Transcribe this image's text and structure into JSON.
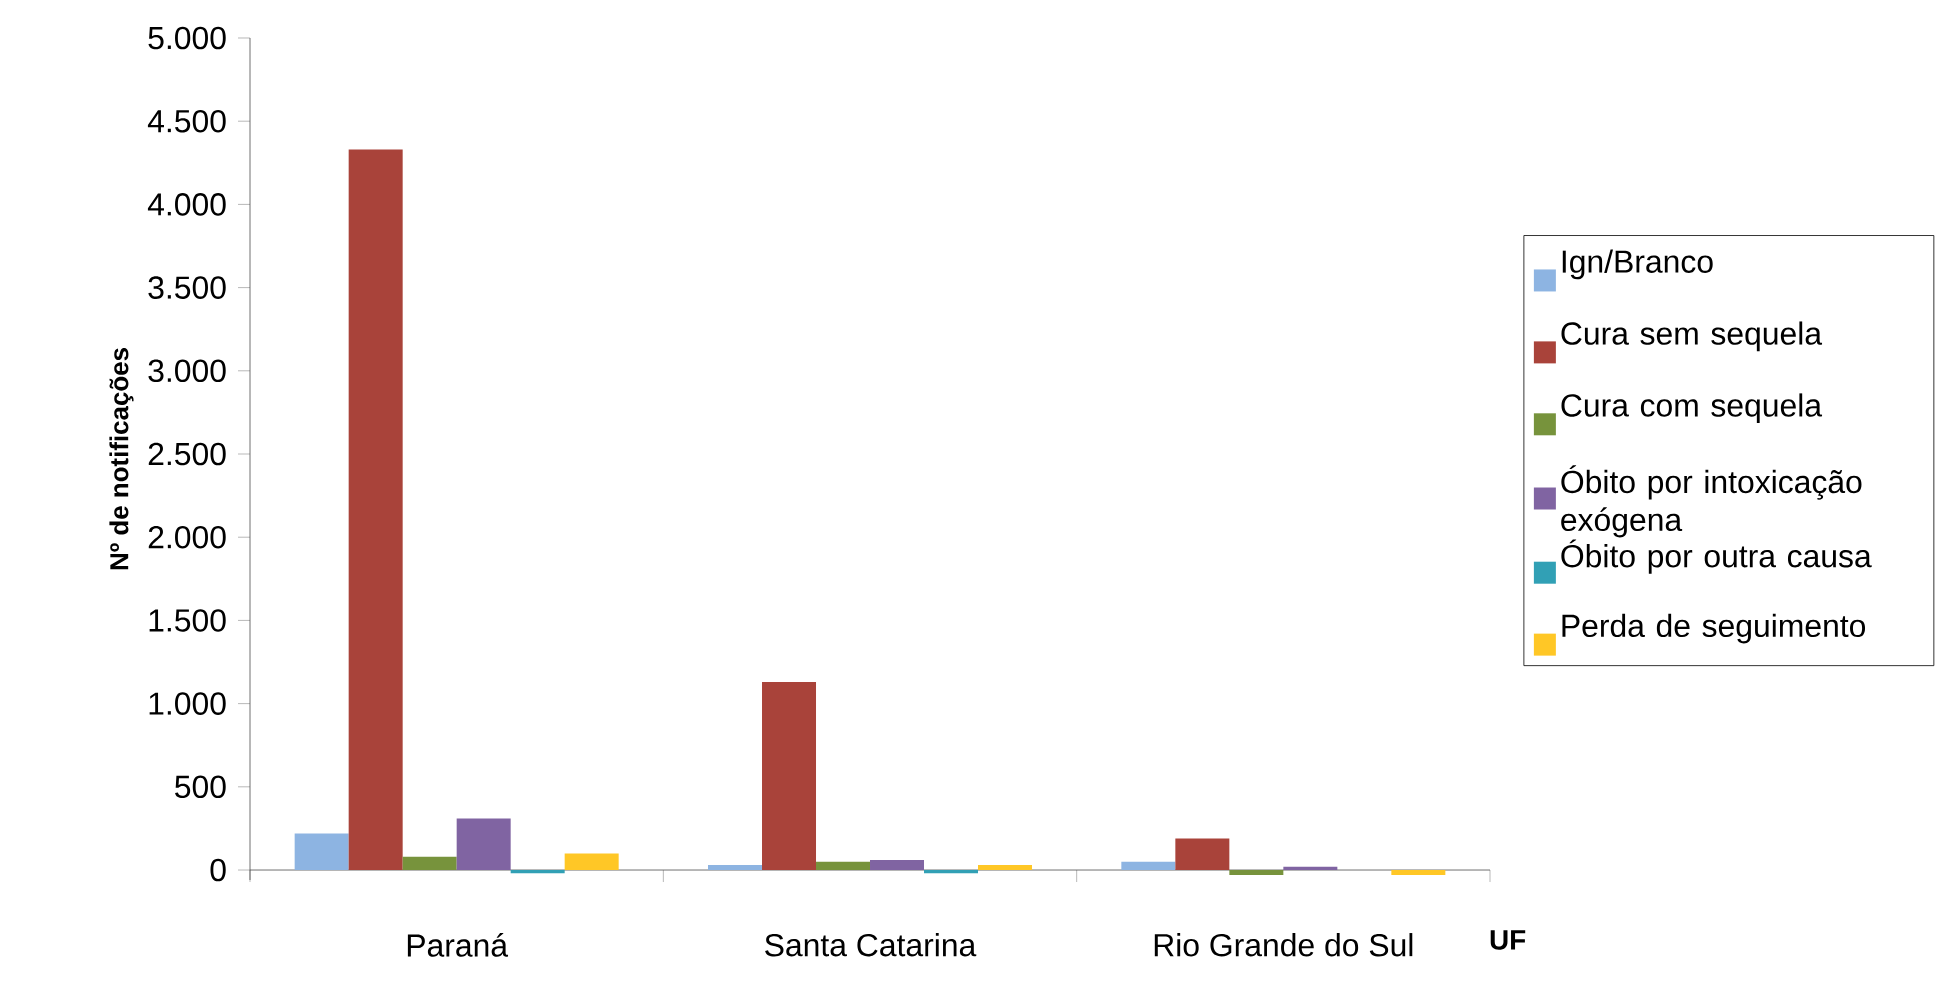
{
  "chart_data": {
    "type": "bar",
    "ylabel": "Nº de notificações",
    "xlabel": "UF",
    "categories": [
      "Paraná",
      "Santa Catarina",
      "Rio Grande do Sul"
    ],
    "series": [
      {
        "name": "Ign/Branco",
        "color": "#8db4e2",
        "values": [
          220,
          30,
          50
        ]
      },
      {
        "name": "Cura sem sequela",
        "color": "#a9433a",
        "values": [
          4330,
          1130,
          190
        ]
      },
      {
        "name": "Cura com sequela",
        "color": "#77933c",
        "values": [
          80,
          50,
          -30
        ]
      },
      {
        "name": "Óbito por intoxicação exógena",
        "color": "#8064a2",
        "values": [
          310,
          60,
          20
        ]
      },
      {
        "name": "Óbito por outra causa",
        "color": "#31a0b5",
        "values": [
          -20,
          -20,
          0
        ]
      },
      {
        "name": "Perda de seguimento",
        "color": "#ffc726",
        "values": [
          100,
          30,
          -30
        ]
      }
    ],
    "ylim": [
      -60,
      5000
    ],
    "yticks": [
      {
        "value": 0,
        "label": "0"
      },
      {
        "value": 500,
        "label": "500"
      },
      {
        "value": 1000,
        "label": "1.000"
      },
      {
        "value": 1500,
        "label": "1.500"
      },
      {
        "value": 2000,
        "label": "2.000"
      },
      {
        "value": 2500,
        "label": "2.500"
      },
      {
        "value": 3000,
        "label": "3.000"
      },
      {
        "value": 3500,
        "label": "3.500"
      },
      {
        "value": 4000,
        "label": "4.000"
      },
      {
        "value": 4500,
        "label": "4.500"
      },
      {
        "value": 5000,
        "label": "5.000"
      }
    ],
    "grid": false,
    "legend": "right"
  }
}
